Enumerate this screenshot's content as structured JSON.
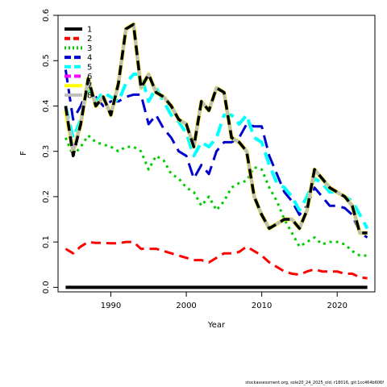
{
  "chart_data": {
    "type": "line",
    "title": "",
    "xlabel": "Year",
    "ylabel": "F",
    "xlim": [
      1983,
      2025
    ],
    "ylim": [
      -0.01,
      0.6
    ],
    "x_ticks": [
      1990,
      2000,
      2010,
      2020
    ],
    "y_ticks": [
      0.0,
      0.1,
      0.2,
      0.3,
      0.4,
      0.5,
      0.6
    ],
    "grid": false,
    "legend_position": "top-left",
    "x": [
      1984,
      1985,
      1986,
      1987,
      1988,
      1989,
      1990,
      1991,
      1992,
      1993,
      1994,
      1995,
      1996,
      1997,
      1998,
      1999,
      2000,
      2001,
      2002,
      2003,
      2004,
      2005,
      2006,
      2007,
      2008,
      2009,
      2010,
      2011,
      2012,
      2013,
      2014,
      2015,
      2016,
      2017,
      2018,
      2019,
      2020,
      2021,
      2022,
      2023,
      2024
    ],
    "series": [
      {
        "name": "1",
        "color": "#000000",
        "dash": "solid",
        "width": 4,
        "values": [
          0,
          0,
          0,
          0,
          0,
          0,
          0,
          0,
          0,
          0,
          0,
          0,
          0,
          0,
          0,
          0,
          0,
          0,
          0,
          0,
          0,
          0,
          0,
          0,
          0,
          0,
          0,
          0,
          0,
          0,
          0,
          0,
          0,
          0,
          0,
          0,
          0,
          0,
          0,
          0,
          0
        ]
      },
      {
        "name": "2",
        "color": "#ff0000",
        "dash": "dash",
        "width": 3,
        "values": [
          0.085,
          0.075,
          0.09,
          0.1,
          0.098,
          0.098,
          0.097,
          0.097,
          0.1,
          0.1,
          0.085,
          0.085,
          0.085,
          0.08,
          0.075,
          0.07,
          0.065,
          0.06,
          0.06,
          0.055,
          0.065,
          0.075,
          0.075,
          0.078,
          0.09,
          0.08,
          0.07,
          0.055,
          0.045,
          0.035,
          0.03,
          0.028,
          0.035,
          0.04,
          0.035,
          0.035,
          0.035,
          0.03,
          0.03,
          0.022,
          0.02
        ]
      },
      {
        "name": "3",
        "color": "#00cd00",
        "dash": "dot",
        "width": 3,
        "values": [
          0.33,
          0.29,
          0.31,
          0.335,
          0.32,
          0.315,
          0.31,
          0.3,
          0.31,
          0.31,
          0.3,
          0.26,
          0.29,
          0.28,
          0.25,
          0.24,
          0.22,
          0.21,
          0.18,
          0.2,
          0.17,
          0.19,
          0.22,
          0.23,
          0.235,
          0.265,
          0.26,
          0.22,
          0.19,
          0.15,
          0.12,
          0.09,
          0.1,
          0.11,
          0.095,
          0.1,
          0.1,
          0.095,
          0.08,
          0.07,
          0.07
        ]
      },
      {
        "name": "4",
        "color": "#0000cd",
        "dash": "longdash",
        "width": 3,
        "values": [
          0.48,
          0.37,
          0.4,
          0.44,
          0.42,
          0.4,
          0.41,
          0.41,
          0.42,
          0.425,
          0.425,
          0.36,
          0.38,
          0.35,
          0.33,
          0.3,
          0.29,
          0.24,
          0.27,
          0.25,
          0.3,
          0.32,
          0.32,
          0.33,
          0.36,
          0.355,
          0.355,
          0.29,
          0.25,
          0.21,
          0.19,
          0.16,
          0.18,
          0.22,
          0.2,
          0.18,
          0.18,
          0.175,
          0.16,
          0.12,
          0.11
        ]
      },
      {
        "name": "5",
        "color": "#00ffff",
        "dash": "longdash",
        "width": 4,
        "values": [
          0.4,
          0.33,
          0.37,
          0.44,
          0.41,
          0.43,
          0.42,
          0.41,
          0.45,
          0.47,
          0.47,
          0.41,
          0.44,
          0.41,
          0.38,
          0.365,
          0.34,
          0.29,
          0.32,
          0.31,
          0.33,
          0.38,
          0.38,
          0.36,
          0.38,
          0.33,
          0.32,
          0.27,
          0.23,
          0.22,
          0.2,
          0.17,
          0.2,
          0.24,
          0.23,
          0.21,
          0.21,
          0.2,
          0.19,
          0.16,
          0.13
        ]
      },
      {
        "name": "6",
        "color": "#ff00ff",
        "dash": "longdash",
        "width": 3,
        "values": [
          0.39,
          0.3,
          0.36,
          0.46,
          0.4,
          0.42,
          0.38,
          0.45,
          0.57,
          0.58,
          0.44,
          0.47,
          0.43,
          0.42,
          0.4,
          0.37,
          0.36,
          0.31,
          0.41,
          0.39,
          0.44,
          0.43,
          0.33,
          0.32,
          0.3,
          0.2,
          0.16,
          0.13,
          0.14,
          0.15,
          0.15,
          0.13,
          0.17,
          0.26,
          0.24,
          0.22,
          0.21,
          0.2,
          0.18,
          0.12,
          0.12
        ]
      },
      {
        "name": "7",
        "color": "#ffff00",
        "dash": "solid",
        "width": 5,
        "values": [
          0.39,
          0.3,
          0.36,
          0.46,
          0.4,
          0.42,
          0.38,
          0.45,
          0.57,
          0.58,
          0.44,
          0.47,
          0.43,
          0.42,
          0.4,
          0.37,
          0.36,
          0.31,
          0.41,
          0.39,
          0.44,
          0.43,
          0.33,
          0.32,
          0.3,
          0.2,
          0.16,
          0.13,
          0.14,
          0.15,
          0.15,
          0.13,
          0.17,
          0.26,
          0.24,
          0.22,
          0.21,
          0.2,
          0.18,
          0.12,
          0.12
        ]
      },
      {
        "name": "8",
        "color": "#bebebe",
        "dash": "solid",
        "width": 4,
        "values": [
          0.4,
          0.3,
          0.36,
          0.46,
          0.4,
          0.42,
          0.38,
          0.45,
          0.57,
          0.58,
          0.44,
          0.47,
          0.43,
          0.42,
          0.4,
          0.37,
          0.36,
          0.31,
          0.41,
          0.39,
          0.44,
          0.43,
          0.33,
          0.32,
          0.3,
          0.2,
          0.16,
          0.13,
          0.14,
          0.15,
          0.15,
          0.13,
          0.17,
          0.26,
          0.24,
          0.22,
          0.21,
          0.2,
          0.18,
          0.12,
          0.12
        ]
      },
      {
        "name": "",
        "color": "#000000",
        "dash": "dash",
        "width": 3.5,
        "values": [
          0.4,
          0.29,
          0.36,
          0.46,
          0.4,
          0.42,
          0.38,
          0.45,
          0.57,
          0.58,
          0.44,
          0.47,
          0.43,
          0.42,
          0.4,
          0.37,
          0.36,
          0.31,
          0.41,
          0.39,
          0.44,
          0.43,
          0.33,
          0.32,
          0.3,
          0.2,
          0.16,
          0.13,
          0.14,
          0.15,
          0.15,
          0.13,
          0.17,
          0.26,
          0.24,
          0.22,
          0.21,
          0.2,
          0.18,
          0.12,
          0.12
        ]
      }
    ],
    "legend": [
      {
        "label": "1",
        "color": "#000000",
        "dash": "solid"
      },
      {
        "label": "2",
        "color": "#ff0000",
        "dash": "dash"
      },
      {
        "label": "3",
        "color": "#00cd00",
        "dash": "dot"
      },
      {
        "label": "4",
        "color": "#0000cd",
        "dash": "longdash"
      },
      {
        "label": "5",
        "color": "#00ffff",
        "dash": "longdash"
      },
      {
        "label": "6",
        "color": "#ff00ff",
        "dash": "longdash"
      },
      {
        "label": "7",
        "color": "#ffff00",
        "dash": "solid"
      },
      {
        "label": "8",
        "color": "#bebebe",
        "dash": "solid"
      }
    ]
  },
  "footer_text": "stockassessment.org, sole20_24_2025_old, r18016, git:1cc464b606f"
}
